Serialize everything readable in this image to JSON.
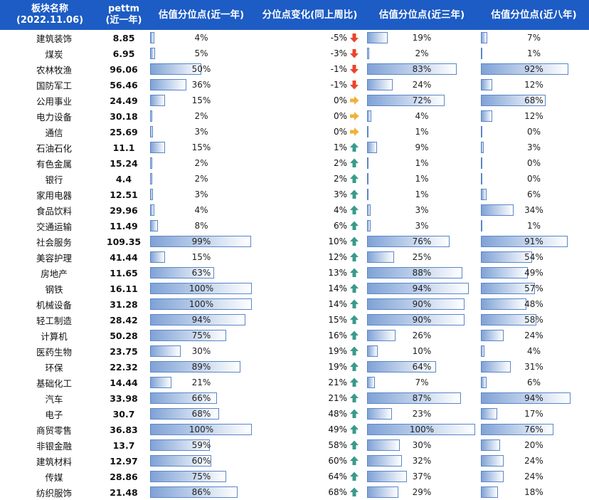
{
  "headers": {
    "name": "板块名称",
    "name_date": "(2022.11.06)",
    "pe": "pettm",
    "pe_sub": "(近一年)",
    "pct1y": "估值分位点(近一年)",
    "change": "分位点变化(同上周比)",
    "pct3y": "估值分位点(近三年)",
    "pct8y": "估值分位点(近八年)"
  },
  "colors": {
    "header_bg": "#1d5cc4",
    "arrow_down": "#e8452c",
    "arrow_flat": "#f0b13c",
    "arrow_up": "#3a9a8a"
  },
  "chart_data": {
    "type": "table",
    "rows": [
      {
        "name": "建筑装饰",
        "pe": "8.85",
        "p1": 4,
        "chg": -5,
        "dir": "down",
        "p3": 19,
        "p8": 7
      },
      {
        "name": "煤炭",
        "pe": "6.95",
        "p1": 5,
        "chg": -3,
        "dir": "down",
        "p3": 2,
        "p8": 1
      },
      {
        "name": "农林牧渔",
        "pe": "96.06",
        "p1": 50,
        "chg": -1,
        "dir": "down",
        "p3": 83,
        "p8": 92
      },
      {
        "name": "国防军工",
        "pe": "56.46",
        "p1": 36,
        "chg": -1,
        "dir": "down",
        "p3": 24,
        "p8": 12
      },
      {
        "name": "公用事业",
        "pe": "24.49",
        "p1": 15,
        "chg": 0,
        "dir": "flat",
        "p3": 72,
        "p8": 68
      },
      {
        "name": "电力设备",
        "pe": "30.18",
        "p1": 2,
        "chg": 0,
        "dir": "flat",
        "p3": 4,
        "p8": 12
      },
      {
        "name": "通信",
        "pe": "25.69",
        "p1": 3,
        "chg": 0,
        "dir": "flat",
        "p3": 1,
        "p8": 0
      },
      {
        "name": "石油石化",
        "pe": "11.1",
        "p1": 15,
        "chg": 1,
        "dir": "up",
        "p3": 9,
        "p8": 3
      },
      {
        "name": "有色金属",
        "pe": "15.24",
        "p1": 2,
        "chg": 2,
        "dir": "up",
        "p3": 1,
        "p8": 0
      },
      {
        "name": "银行",
        "pe": "4.4",
        "p1": 2,
        "chg": 2,
        "dir": "up",
        "p3": 1,
        "p8": 0
      },
      {
        "name": "家用电器",
        "pe": "12.51",
        "p1": 3,
        "chg": 3,
        "dir": "up",
        "p3": 1,
        "p8": 6
      },
      {
        "name": "食品饮料",
        "pe": "29.96",
        "p1": 4,
        "chg": 4,
        "dir": "up",
        "p3": 3,
        "p8": 34
      },
      {
        "name": "交通运输",
        "pe": "11.49",
        "p1": 8,
        "chg": 6,
        "dir": "up",
        "p3": 3,
        "p8": 1
      },
      {
        "name": "社会服务",
        "pe": "109.35",
        "p1": 99,
        "chg": 10,
        "dir": "up",
        "p3": 76,
        "p8": 91
      },
      {
        "name": "美容护理",
        "pe": "41.44",
        "p1": 15,
        "chg": 12,
        "dir": "up",
        "p3": 25,
        "p8": 54
      },
      {
        "name": "房地产",
        "pe": "11.65",
        "p1": 63,
        "chg": 13,
        "dir": "up",
        "p3": 88,
        "p8": 49
      },
      {
        "name": "钢铁",
        "pe": "16.11",
        "p1": 100,
        "chg": 14,
        "dir": "up",
        "p3": 94,
        "p8": 57
      },
      {
        "name": "机械设备",
        "pe": "31.28",
        "p1": 100,
        "chg": 14,
        "dir": "up",
        "p3": 90,
        "p8": 48
      },
      {
        "name": "轻工制造",
        "pe": "28.42",
        "p1": 94,
        "chg": 15,
        "dir": "up",
        "p3": 90,
        "p8": 58
      },
      {
        "name": "计算机",
        "pe": "50.28",
        "p1": 75,
        "chg": 16,
        "dir": "up",
        "p3": 26,
        "p8": 24
      },
      {
        "name": "医药生物",
        "pe": "23.75",
        "p1": 30,
        "chg": 19,
        "dir": "up",
        "p3": 10,
        "p8": 4
      },
      {
        "name": "环保",
        "pe": "22.32",
        "p1": 89,
        "chg": 19,
        "dir": "up",
        "p3": 64,
        "p8": 31
      },
      {
        "name": "基础化工",
        "pe": "14.44",
        "p1": 21,
        "chg": 21,
        "dir": "up",
        "p3": 7,
        "p8": 6
      },
      {
        "name": "汽车",
        "pe": "33.98",
        "p1": 66,
        "chg": 21,
        "dir": "up",
        "p3": 87,
        "p8": 94
      },
      {
        "name": "电子",
        "pe": "30.7",
        "p1": 68,
        "chg": 48,
        "dir": "up",
        "p3": 23,
        "p8": 17
      },
      {
        "name": "商贸零售",
        "pe": "36.83",
        "p1": 100,
        "chg": 49,
        "dir": "up",
        "p3": 100,
        "p8": 76
      },
      {
        "name": "非银金融",
        "pe": "13.7",
        "p1": 59,
        "chg": 58,
        "dir": "up",
        "p3": 30,
        "p8": 20
      },
      {
        "name": "建筑材料",
        "pe": "12.97",
        "p1": 60,
        "chg": 60,
        "dir": "up",
        "p3": 32,
        "p8": 24
      },
      {
        "name": "传媒",
        "pe": "28.86",
        "p1": 75,
        "chg": 64,
        "dir": "up",
        "p3": 37,
        "p8": 24
      },
      {
        "name": "纺织服饰",
        "pe": "21.48",
        "p1": 86,
        "chg": 68,
        "dir": "up",
        "p3": 29,
        "p8": 18
      }
    ]
  }
}
